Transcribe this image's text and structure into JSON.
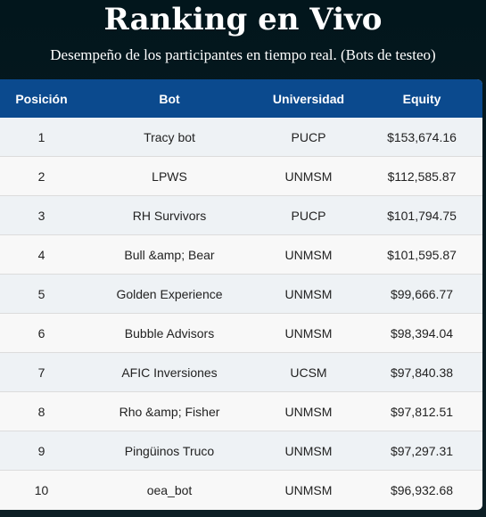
{
  "header": {
    "title": "Ranking en Vivo",
    "subtitle": "Desempeño de los participantes en tiempo real. (Bots de testeo)"
  },
  "table": {
    "columns": [
      "Posición",
      "Bot",
      "Universidad",
      "Equity"
    ],
    "rows": [
      {
        "position": "1",
        "bot": "Tracy bot",
        "university": "PUCP",
        "equity": "$153,674.16"
      },
      {
        "position": "2",
        "bot": "LPWS",
        "university": "UNMSM",
        "equity": "$112,585.87"
      },
      {
        "position": "3",
        "bot": "RH Survivors",
        "university": "PUCP",
        "equity": "$101,794.75"
      },
      {
        "position": "4",
        "bot": "Bull &amp; Bear",
        "university": "UNMSM",
        "equity": "$101,595.87"
      },
      {
        "position": "5",
        "bot": "Golden Experience",
        "university": "UNMSM",
        "equity": "$99,666.77"
      },
      {
        "position": "6",
        "bot": "Bubble Advisors",
        "university": "UNMSM",
        "equity": "$98,394.04"
      },
      {
        "position": "7",
        "bot": "AFIC Inversiones",
        "university": "UCSM",
        "equity": "$97,840.38"
      },
      {
        "position": "8",
        "bot": "Rho &amp; Fisher",
        "university": "UNMSM",
        "equity": "$97,812.51"
      },
      {
        "position": "9",
        "bot": "Pingüinos Truco",
        "university": "UNMSM",
        "equity": "$97,297.31"
      },
      {
        "position": "10",
        "bot": "oea_bot",
        "university": "UNMSM",
        "equity": "$96,932.68"
      }
    ]
  },
  "colors": {
    "header_bg": "#0b4a8e",
    "page_bg": "#02161c",
    "row_odd": "#eef2f5",
    "row_even": "#f8f8f8"
  }
}
